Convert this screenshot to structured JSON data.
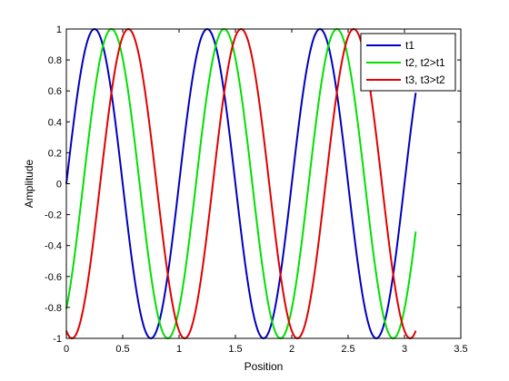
{
  "chart_data": {
    "type": "line",
    "title": "",
    "xlabel": "Position",
    "ylabel": "Amplitude",
    "xlim": [
      0,
      3.5
    ],
    "ylim": [
      -1,
      1
    ],
    "grid": false,
    "legend_placement": "top-right",
    "x_ticks": [
      "0",
      "0.5",
      "1",
      "1.5",
      "2",
      "2.5",
      "3",
      "3.5"
    ],
    "y_ticks": [
      "-1",
      "-0.8",
      "-0.6",
      "-0.4",
      "-0.2",
      "0",
      "0.2",
      "0.4",
      "0.6",
      "0.8",
      "1"
    ],
    "x_tick_values": [
      0,
      0.5,
      1,
      1.5,
      2,
      2.5,
      3,
      3.5
    ],
    "y_tick_values": [
      -1,
      -0.8,
      -0.6,
      -0.4,
      -0.2,
      0,
      0.2,
      0.4,
      0.6,
      0.8,
      1
    ],
    "x_range": [
      0,
      3.1
    ],
    "series": [
      {
        "name": "t1",
        "color": "#0000bf",
        "function": "sin",
        "period": 1,
        "phase_shift": 0
      },
      {
        "name": "t2, t2>t1",
        "color": "#00e000",
        "function": "sin",
        "period": 1,
        "phase_shift": 0.15
      },
      {
        "name": "t3, t3>t2",
        "color": "#e00000",
        "function": "sin",
        "period": 1,
        "phase_shift": 0.3
      }
    ]
  }
}
